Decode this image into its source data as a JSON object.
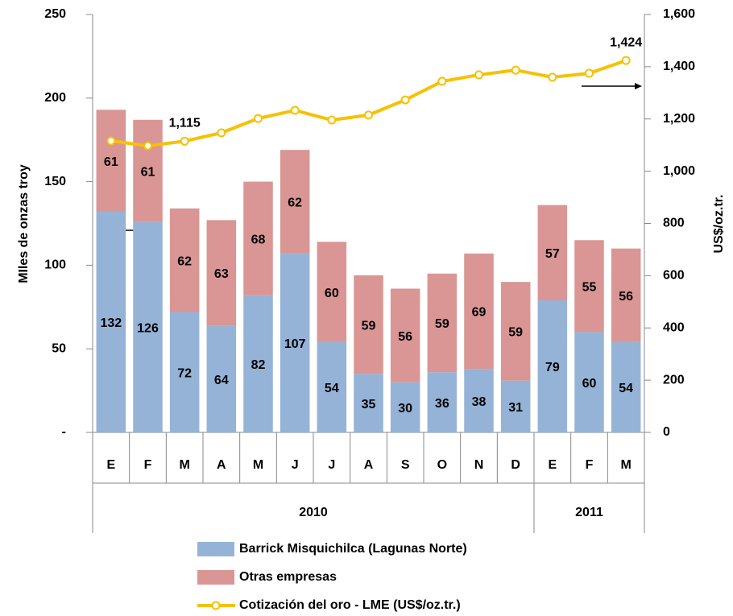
{
  "chart_data": {
    "type": "bar-line",
    "categories": [
      "E",
      "F",
      "M",
      "A",
      "M",
      "J",
      "J",
      "A",
      "S",
      "O",
      "N",
      "D",
      "E",
      "F",
      "M"
    ],
    "groups": [
      {
        "label": "2010",
        "categories": 12
      },
      {
        "label": "2011",
        "categories": 3
      }
    ],
    "y_label": "MIles de onzas troy",
    "y2_label": "US$/oz.tr.",
    "series": [
      {
        "name": "Barrick Misquichilca (Lagunas Norte)",
        "type": "bar",
        "color": "#95b3d7",
        "values": [
          132,
          126,
          72,
          64,
          82,
          107,
          54,
          35,
          30,
          36,
          38,
          31,
          79,
          60,
          54
        ]
      },
      {
        "name": "Otras empresas",
        "type": "bar",
        "color": "#d99694",
        "values": [
          61,
          61,
          62,
          63,
          68,
          62,
          60,
          59,
          56,
          59,
          69,
          59,
          57,
          55,
          56
        ]
      },
      {
        "name": "Cotización del oro - LME (US$/oz.tr.)",
        "type": "line",
        "axis": "y2",
        "color": "#f8c000",
        "values": [
          1116,
          1097,
          1115,
          1147,
          1202,
          1233,
          1196,
          1215,
          1273,
          1344,
          1369,
          1387,
          1360,
          1375,
          1424
        ],
        "value_labels": [
          null,
          null,
          "1,115",
          null,
          null,
          null,
          null,
          null,
          null,
          null,
          null,
          null,
          null,
          null,
          "1,424"
        ]
      }
    ],
    "ylim": [
      0,
      250
    ],
    "yticks": [
      {
        "value": 0,
        "label": "-"
      },
      50,
      100,
      150,
      200,
      250
    ],
    "y2lim": [
      0,
      1600
    ],
    "y2ticks": [
      0,
      200,
      400,
      600,
      800,
      {
        "value": 1000,
        "label": "1,000"
      },
      {
        "value": 1200,
        "label": "1,200"
      },
      {
        "value": 1400,
        "label": "1,400"
      },
      {
        "value": 1600,
        "label": "1,600"
      }
    ]
  }
}
